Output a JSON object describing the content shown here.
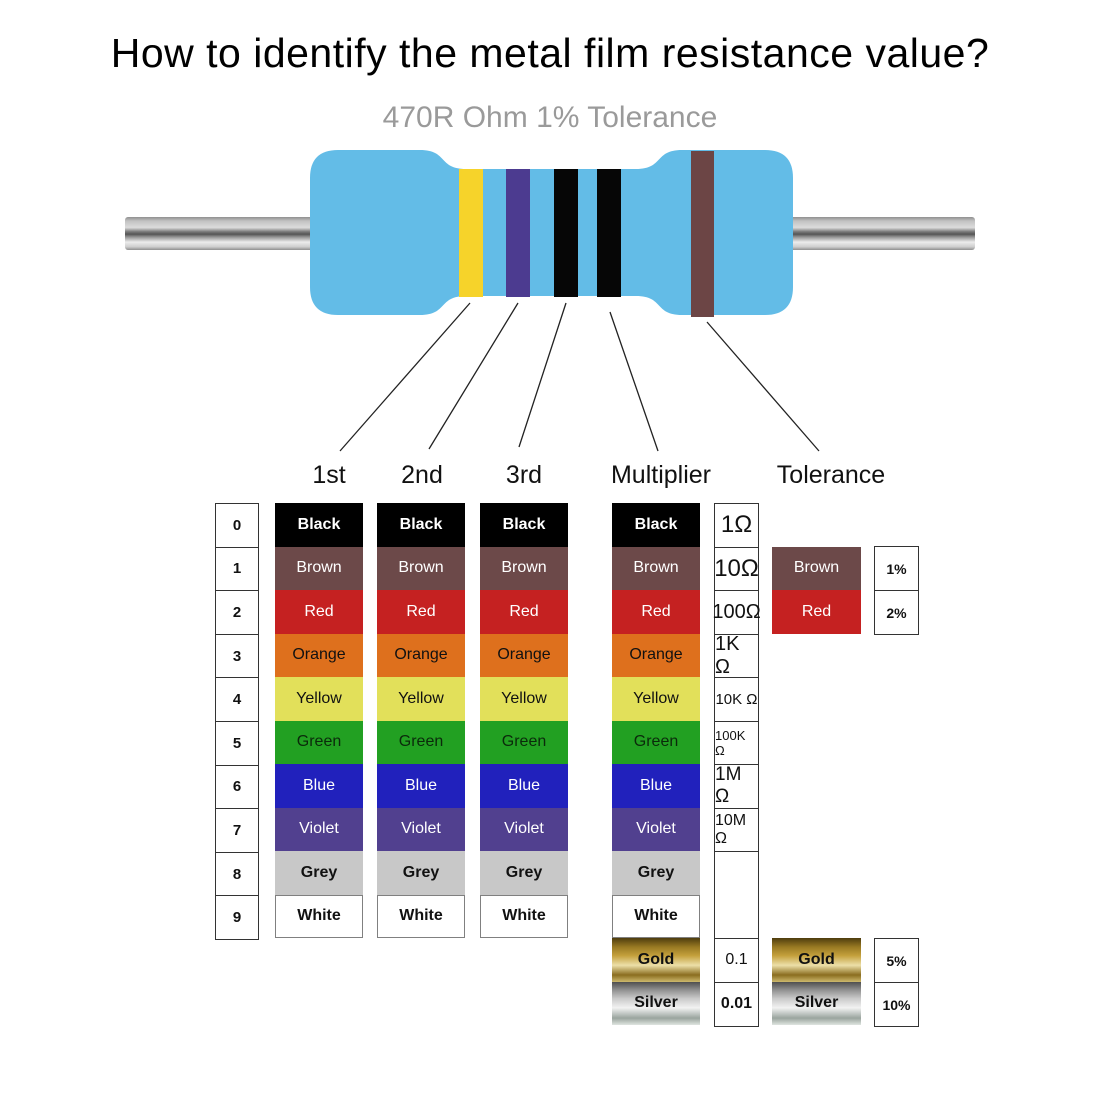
{
  "title": "How to identify the metal film resistance value?",
  "subtitle": "470R Ohm 1% Tolerance",
  "resistor": {
    "body_color": "#63BCE7",
    "bands": [
      {
        "name": "band-1-yellow",
        "color": "#F6D32A",
        "points_to": "1st"
      },
      {
        "name": "band-2-violet",
        "color": "#4C3B90",
        "points_to": "2nd"
      },
      {
        "name": "band-3-black",
        "color": "#060606",
        "points_to": "3rd"
      },
      {
        "name": "band-4-black",
        "color": "#060606",
        "points_to": "Multiplier"
      },
      {
        "name": "band-5-brown",
        "color": "#6C4545",
        "points_to": "Tolerance"
      }
    ]
  },
  "column_labels": [
    "1st",
    "2nd",
    "3rd",
    "Multiplier",
    "Tolerance"
  ],
  "digit_column": [
    "0",
    "1",
    "2",
    "3",
    "4",
    "5",
    "6",
    "7",
    "8",
    "9"
  ],
  "color_rows": [
    {
      "label": "Black",
      "bg": "#000000",
      "fg": "#ffffff",
      "bold": true
    },
    {
      "label": "Brown",
      "bg": "#6C4949",
      "fg": "#ffffff",
      "bold": false
    },
    {
      "label": "Red",
      "bg": "#C52121",
      "fg": "#ffffff",
      "bold": false
    },
    {
      "label": "Orange",
      "bg": "#DE701D",
      "fg": "#111111",
      "bold": false
    },
    {
      "label": "Yellow",
      "bg": "#E2E05A",
      "fg": "#111111",
      "bold": false
    },
    {
      "label": "Green",
      "bg": "#22A022",
      "fg": "#0b2a0b",
      "bold": false
    },
    {
      "label": "Blue",
      "bg": "#2121BC",
      "fg": "#ffffff",
      "bold": false
    },
    {
      "label": "Violet",
      "bg": "#51408F",
      "fg": "#ffffff",
      "bold": false
    },
    {
      "label": "Grey",
      "bg": "#C8C8C8",
      "fg": "#111111",
      "bold": true
    },
    {
      "label": "White",
      "bg": "#FFFFFF",
      "fg": "#111111",
      "bold": true
    }
  ],
  "multiplier_values": [
    "1Ω",
    "10Ω",
    "100Ω",
    "1K Ω",
    "10K Ω",
    "100K Ω",
    "1M Ω",
    "10M Ω"
  ],
  "tolerance_rows": [
    {
      "label": "Brown",
      "bg": "#6C4949",
      "fg": "#ffffff",
      "value": "1%"
    },
    {
      "label": "Red",
      "bg": "#C52121",
      "fg": "#ffffff",
      "value": "2%"
    }
  ],
  "metallic_rows": [
    {
      "label": "Gold",
      "multiplier": "0.1",
      "tolerance": "5%"
    },
    {
      "label": "Silver",
      "multiplier": "0.01",
      "tolerance": "10%"
    }
  ]
}
